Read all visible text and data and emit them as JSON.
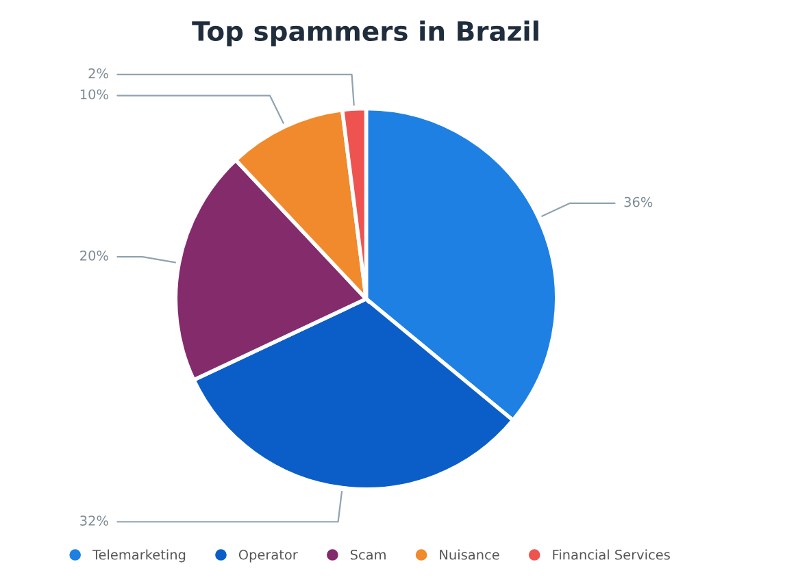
{
  "chart_data": {
    "type": "pie",
    "title": "Top spammers in Brazil",
    "categories": [
      "Telemarketing",
      "Operator",
      "Scam",
      "Nuisance",
      "Financial Services"
    ],
    "values": [
      36,
      32,
      20,
      10,
      2
    ],
    "colors": [
      "#1e80e3",
      "#0b5ec7",
      "#842b6c",
      "#f08a2c",
      "#ef5350"
    ],
    "value_labels": [
      "36%",
      "32%",
      "20%",
      "10%",
      "2%"
    ],
    "legend": "bottom"
  }
}
